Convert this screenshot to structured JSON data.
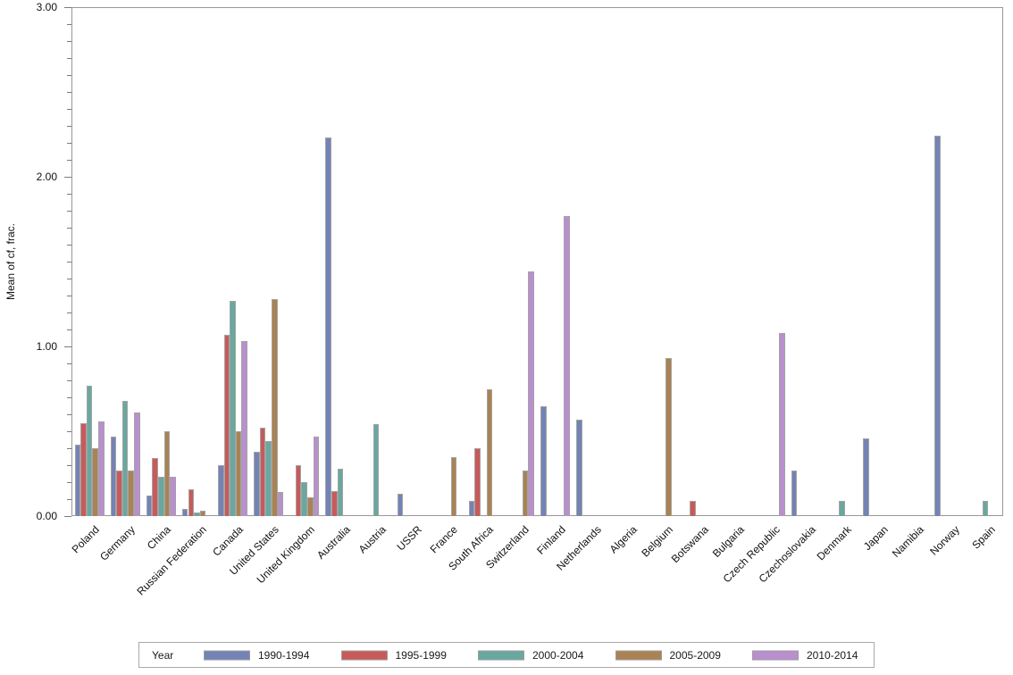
{
  "chart_data": {
    "type": "bar",
    "title": "",
    "ylabel": "Mean of cf, frac.",
    "xlabel": "",
    "ylim": [
      0,
      3
    ],
    "grid": false,
    "legend_position": "bottom",
    "legend_title": "Year",
    "yticks": [
      {
        "value": 0,
        "label": "0.00"
      },
      {
        "value": 1,
        "label": "1.00"
      },
      {
        "value": 2,
        "label": "2.00"
      },
      {
        "value": 3,
        "label": "3.00"
      }
    ],
    "minor_tick_step": 0.1,
    "categories": [
      "Poland",
      "Germany",
      "China",
      "Russian Federation",
      "Canada",
      "United States",
      "United Kingdom",
      "Australia",
      "Austria",
      "USSR",
      "France",
      "South Africa",
      "Switzerland",
      "Finland",
      "Netherlands",
      "Algeria",
      "Belgium",
      "Botswana",
      "Bulgaria",
      "Czech Republic",
      "Czechoslovakia",
      "Denmark",
      "Japan",
      "Namibia",
      "Norway",
      "Spain"
    ],
    "series": [
      {
        "name": "1990-1994",
        "color": "#7483b6",
        "values": [
          0.42,
          0.47,
          0.12,
          0.04,
          0.3,
          0.38,
          0,
          2.23,
          0,
          0.13,
          0,
          0.09,
          0,
          0.65,
          0.57,
          0,
          0,
          0,
          0,
          0,
          0.27,
          0,
          0.46,
          0,
          2.24,
          0
        ]
      },
      {
        "name": "1995-1999",
        "color": "#c85a5a",
        "values": [
          0.55,
          0.27,
          0.34,
          0.16,
          1.07,
          0.52,
          0.3,
          0.15,
          0,
          0,
          0,
          0.4,
          0,
          0,
          0,
          0,
          0,
          0.09,
          0,
          0,
          0,
          0,
          0,
          0,
          0,
          0
        ]
      },
      {
        "name": "2000-2004",
        "color": "#68a89f",
        "values": [
          0.77,
          0.68,
          0.23,
          0.02,
          1.27,
          0.44,
          0.2,
          0.28,
          0.54,
          0,
          0,
          0,
          0,
          0,
          0,
          0,
          0,
          0,
          0,
          0,
          0,
          0.09,
          0,
          0,
          0,
          0.09
        ]
      },
      {
        "name": "2005-2009",
        "color": "#aa8253",
        "values": [
          0.4,
          0.27,
          0.5,
          0.03,
          0.5,
          1.28,
          0.11,
          0,
          0,
          0,
          0.35,
          0.75,
          0.27,
          0,
          0,
          0,
          0.93,
          0,
          0,
          0,
          0,
          0,
          0,
          0,
          0,
          0
        ]
      },
      {
        "name": "2010-2014",
        "color": "#b98fce",
        "values": [
          0.56,
          0.61,
          0.23,
          0,
          1.03,
          0.14,
          0.47,
          0,
          0,
          0,
          0,
          0,
          1.44,
          1.77,
          0,
          0,
          0,
          0,
          0,
          1.08,
          0,
          0,
          0,
          0,
          0,
          0
        ]
      }
    ]
  }
}
